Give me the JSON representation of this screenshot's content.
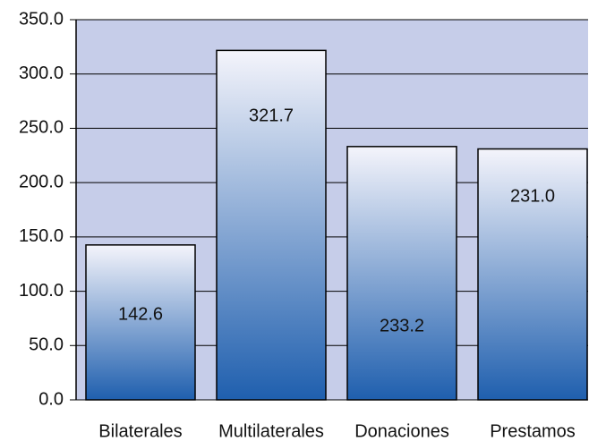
{
  "chart_data": {
    "type": "bar",
    "categories": [
      "Bilaterales",
      "Multilaterales",
      "Donaciones",
      "Prestamos"
    ],
    "values": [
      142.6,
      321.7,
      233.2,
      231
    ],
    "value_labels": [
      "142.6",
      "321.7",
      "233.2",
      "231.0"
    ],
    "color": "#1f5fae",
    "ylim": [
      0,
      350
    ],
    "yticks": [
      {
        "value": 0,
        "label": "0.0"
      },
      {
        "value": 50,
        "label": "50.0"
      },
      {
        "value": 100,
        "label": "100.0"
      },
      {
        "value": 150,
        "label": "150.0"
      },
      {
        "value": 200,
        "label": "200.0"
      },
      {
        "value": 250,
        "label": "250.0"
      },
      {
        "value": 300,
        "label": "300.0"
      },
      {
        "value": 350,
        "label": "350.0"
      }
    ],
    "grid": true
  }
}
